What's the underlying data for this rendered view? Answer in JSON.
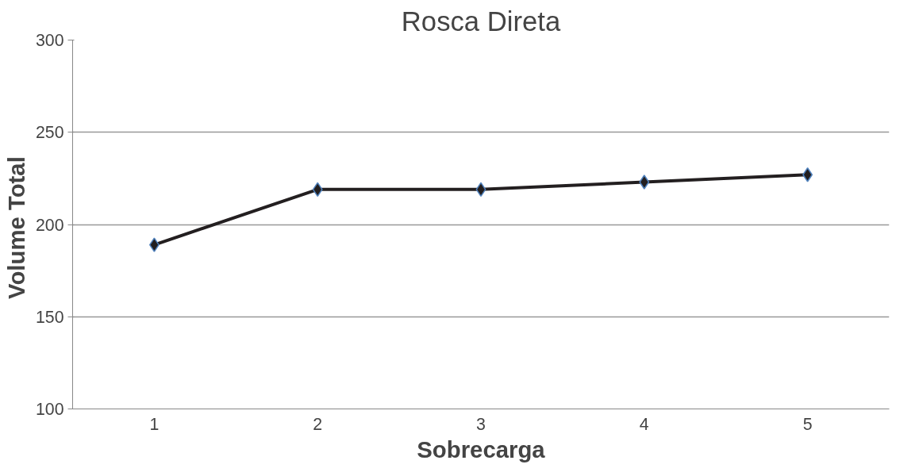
{
  "chart_data": {
    "type": "line",
    "title": "Rosca Direta",
    "xlabel": "Sobrecarga",
    "ylabel": "Volume  Total",
    "categories": [
      "1",
      "2",
      "3",
      "4",
      "5"
    ],
    "series": [
      {
        "color": "#231f20",
        "values": [
          189,
          219,
          219,
          223,
          227
        ]
      }
    ],
    "ylim": [
      100,
      300
    ],
    "yticks": [
      100,
      150,
      200,
      250,
      300
    ],
    "grid": "y",
    "marker": "diamond",
    "line_style": "solid"
  }
}
